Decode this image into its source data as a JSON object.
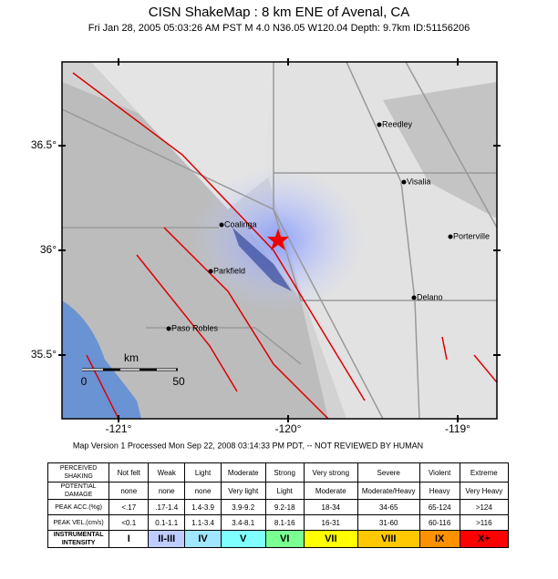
{
  "header": {
    "title": "CISN ShakeMap : 8 km ENE of  Avenal, CA",
    "subtitle": "Fri Jan 28, 2005 05:03:26 AM PST   M 4.0   N36.05 W120.04   Depth: 9.7km   ID:51156206"
  },
  "map": {
    "lat_ticks": [
      {
        "value": 36.5,
        "label": "36.5°"
      },
      {
        "value": 36,
        "label": "36°"
      },
      {
        "value": 35.5,
        "label": "35.5°"
      }
    ],
    "lon_ticks": [
      {
        "value": -121,
        "label": "-121°"
      },
      {
        "value": -120,
        "label": "-120°"
      },
      {
        "value": -119,
        "label": "-119°"
      }
    ],
    "cities": [
      "Reedley",
      "Visalia",
      "Porterville",
      "Coalinga",
      "Parkfield",
      "Delano",
      "Paso Robles"
    ],
    "scale": {
      "unit": "km",
      "start": "0",
      "end": "50"
    }
  },
  "version_note": "Map Version 1 Processed Mon Sep 22, 2008 03:14:33 PM PDT, -- NOT REVIEWED BY HUMAN",
  "table": {
    "rows": [
      [
        "PERCEIVED SHAKING",
        "Not felt",
        "Weak",
        "Light",
        "Moderate",
        "Strong",
        "Very strong",
        "Severe",
        "Violent",
        "Extreme"
      ],
      [
        "POTENTIAL DAMAGE",
        "none",
        "none",
        "none",
        "Very light",
        "Light",
        "Moderate",
        "Moderate/Heavy",
        "Heavy",
        "Very Heavy"
      ],
      [
        "PEAK ACC.(%g)",
        "<.17",
        ".17-1.4",
        "1.4-3.9",
        "3.9-9.2",
        "9.2-18",
        "18-34",
        "34-65",
        "65-124",
        ">124"
      ],
      [
        "PEAK VEL.(cm/s)",
        "<0.1",
        "0.1-1.1",
        "1.1-3.4",
        "3.4-8.1",
        "8.1-16",
        "16-31",
        "31-60",
        "60-116",
        ">116"
      ],
      [
        "INSTRUMENTAL INTENSITY",
        "I",
        "II-III",
        "IV",
        "V",
        "VI",
        "VII",
        "VIII",
        "IX",
        "X+"
      ]
    ]
  }
}
